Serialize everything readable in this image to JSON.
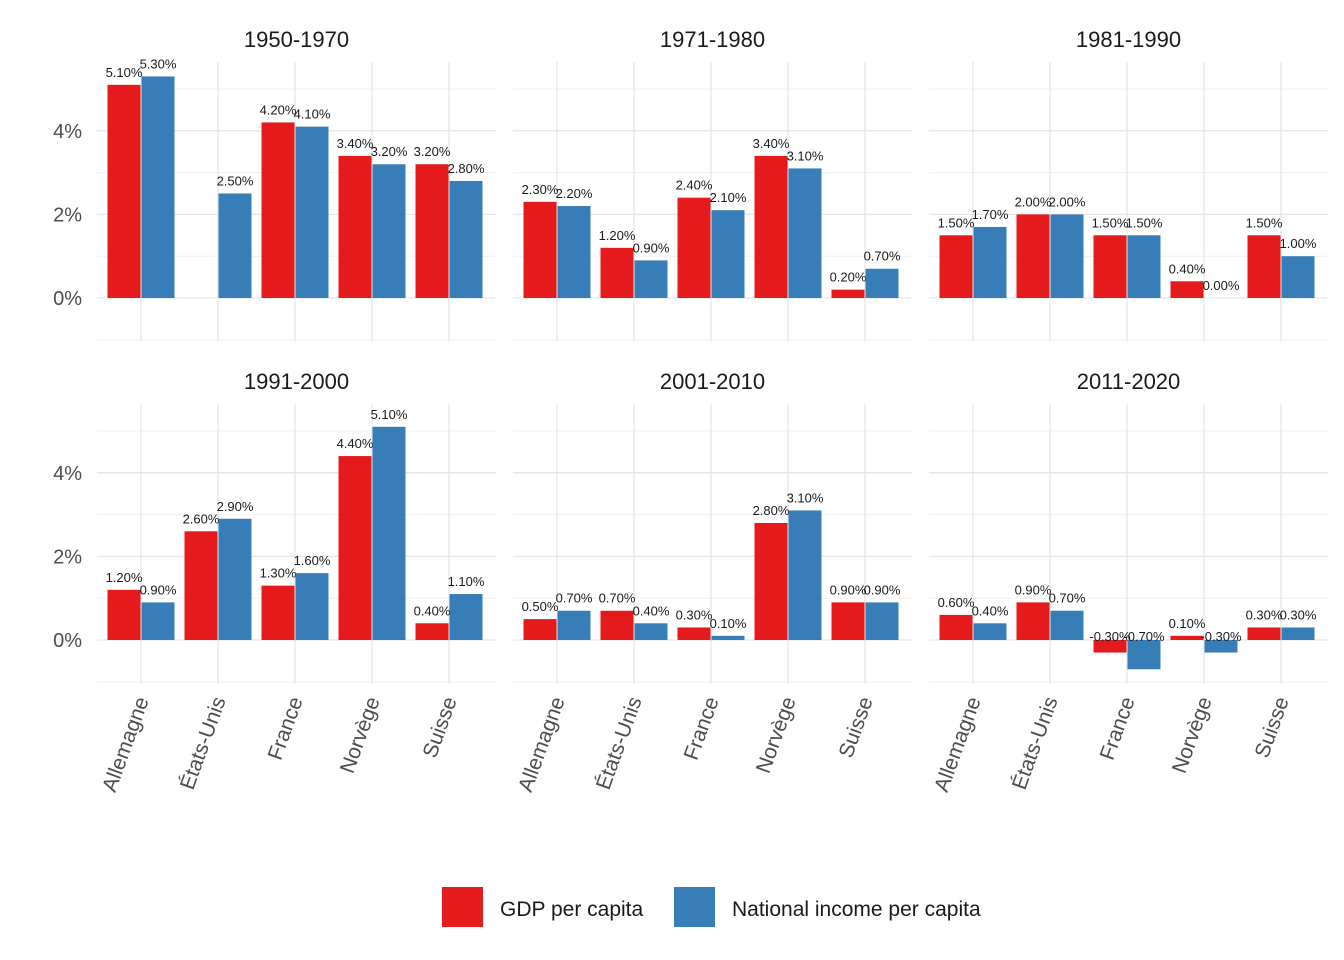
{
  "chart_data": {
    "type": "bar",
    "layout": "facet-grid",
    "categories": [
      "Allemagne",
      "États-Unis",
      "France",
      "Norvège",
      "Suisse"
    ],
    "series_names": [
      "GDP per capita",
      "National income per capita"
    ],
    "colors": {
      "GDP per capita": "#e41a1c",
      "National income per capita": "#377eb8"
    },
    "yticks": [
      0,
      2,
      4
    ],
    "ytick_labels": [
      "0%",
      "2%",
      "4%"
    ],
    "ylim": [
      -1.0,
      5.6
    ],
    "grid": true,
    "legend_position": "bottom",
    "panels": [
      {
        "title": "1950-1970",
        "series": [
          {
            "name": "GDP per capita",
            "values": [
              5.1,
              null,
              4.2,
              3.4,
              3.2
            ],
            "labels": [
              "5.10%",
              "",
              "4.20%",
              "3.40%",
              "3.20%"
            ]
          },
          {
            "name": "National income per capita",
            "values": [
              5.3,
              2.5,
              4.1,
              3.2,
              2.8
            ],
            "labels": [
              "5.30%",
              "2.50%",
              "4.10%",
              "3.20%",
              "2.80%"
            ]
          }
        ]
      },
      {
        "title": "1971-1980",
        "series": [
          {
            "name": "GDP per capita",
            "values": [
              2.3,
              1.2,
              2.4,
              3.4,
              0.2
            ],
            "labels": [
              "2.30%",
              "1.20%",
              "2.40%",
              "3.40%",
              "0.20%"
            ]
          },
          {
            "name": "National income per capita",
            "values": [
              2.2,
              0.9,
              2.1,
              3.1,
              0.7
            ],
            "labels": [
              "2.20%",
              "0.90%",
              "2.10%",
              "3.10%",
              "0.70%"
            ]
          }
        ]
      },
      {
        "title": "1981-1990",
        "series": [
          {
            "name": "GDP per capita",
            "values": [
              1.5,
              2.0,
              1.5,
              0.4,
              1.5
            ],
            "labels": [
              "1.50%",
              "2.00%",
              "1.50%",
              "0.40%",
              "1.50%"
            ]
          },
          {
            "name": "National income per capita",
            "values": [
              1.7,
              2.0,
              1.5,
              0.0,
              1.0
            ],
            "labels": [
              "1.70%",
              "2.00%",
              "1.50%",
              "0.00%",
              "1.00%"
            ]
          }
        ]
      },
      {
        "title": "1991-2000",
        "series": [
          {
            "name": "GDP per capita",
            "values": [
              1.2,
              2.6,
              1.3,
              4.4,
              0.4
            ],
            "labels": [
              "1.20%",
              "2.60%",
              "1.30%",
              "4.40%",
              "0.40%"
            ]
          },
          {
            "name": "National income per capita",
            "values": [
              0.9,
              2.9,
              1.6,
              5.1,
              1.1
            ],
            "labels": [
              "0.90%",
              "2.90%",
              "1.60%",
              "5.10%",
              "1.10%"
            ]
          }
        ]
      },
      {
        "title": "2001-2010",
        "series": [
          {
            "name": "GDP per capita",
            "values": [
              0.5,
              0.7,
              0.3,
              2.8,
              0.9
            ],
            "labels": [
              "0.50%",
              "0.70%",
              "0.30%",
              "2.80%",
              "0.90%"
            ]
          },
          {
            "name": "National income per capita",
            "values": [
              0.7,
              0.4,
              0.1,
              3.1,
              0.9
            ],
            "labels": [
              "0.70%",
              "0.40%",
              "0.10%",
              "3.10%",
              "0.90%"
            ]
          }
        ]
      },
      {
        "title": "2011-2020",
        "series": [
          {
            "name": "GDP per capita",
            "values": [
              0.6,
              0.9,
              -0.3,
              0.1,
              0.3
            ],
            "labels": [
              "0.60%",
              "0.90%",
              "-0.30%",
              "0.10%",
              "0.30%"
            ]
          },
          {
            "name": "National income per capita",
            "values": [
              0.4,
              0.7,
              -0.7,
              -0.3,
              0.3
            ],
            "labels": [
              "0.40%",
              "0.70%",
              "-0.70%",
              "-0.30%",
              "0.30%"
            ]
          }
        ]
      }
    ]
  }
}
